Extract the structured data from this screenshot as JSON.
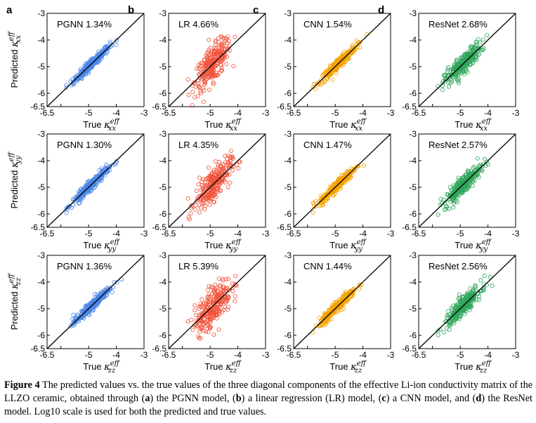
{
  "chart_data": {
    "type": "scatter",
    "x_range": [
      -6.5,
      -3
    ],
    "y_range": [
      -6.5,
      -3
    ],
    "x_ticks": [
      "-6.5",
      "-5",
      "-4",
      "-3"
    ],
    "y_ticks": [
      "-6.5",
      "-6",
      "-5",
      "-4",
      "-3"
    ],
    "x_ticks_extra": [
      "-6"
    ],
    "panel_letters": [
      "a",
      "b",
      "c",
      "d"
    ],
    "models": [
      {
        "key": "PGNN",
        "color": "#4a86e8"
      },
      {
        "key": "LR",
        "color": "#f0523a"
      },
      {
        "key": "CNN",
        "color": "#f5a300"
      },
      {
        "key": "ResNet",
        "color": "#2ea55a"
      }
    ],
    "rows": [
      {
        "component": "xx",
        "xlabel_prefix": "True κ",
        "ylabel_prefix": "Predicted κ",
        "sup": "eff",
        "sub": "xx",
        "labels": [
          "PGNN 1.34%",
          "LR 4.66%",
          "CNN 1.54%",
          "ResNet 2.68%"
        ],
        "spread": [
          0.09,
          0.32,
          0.1,
          0.18
        ]
      },
      {
        "component": "yy",
        "xlabel_prefix": "True κ",
        "ylabel_prefix": "Predicted κ",
        "sup": "eff",
        "sub": "yy",
        "labels": [
          "PGNN 1.30%",
          "LR 4.35%",
          "CNN 1.47%",
          "ResNet 2.57%"
        ],
        "spread": [
          0.09,
          0.3,
          0.1,
          0.17
        ]
      },
      {
        "component": "zz",
        "xlabel_prefix": "True κ",
        "ylabel_prefix": "Predicted κ",
        "sup": "eff",
        "sub": "zz",
        "labels": [
          "PGNN 1.36%",
          "LR 5.39%",
          "CNN 1.44%",
          "ResNet 2.56%"
        ],
        "spread": [
          0.09,
          0.36,
          0.1,
          0.17
        ]
      }
    ],
    "reference_line": "y = x",
    "true_value_distribution": {
      "mean": -4.9,
      "sd": 0.33,
      "min": -5.8,
      "max": -3.7
    }
  },
  "caption": {
    "figure_label": "Figure 4",
    "text_1": " The predicted values vs. the true values of the three diagonal components of the effective Li-ion conductivity matrix of the LLZO ceramic, obtained through (",
    "a": "a",
    "text_2": ") the PGNN model, (",
    "b": "b",
    "text_3": ") a linear regression (LR) model, (",
    "c": "c",
    "text_4": ") a CNN model, and (",
    "d": "d",
    "text_5": ") the ResNet model. Log10 scale is used for both the predicted and true values."
  }
}
